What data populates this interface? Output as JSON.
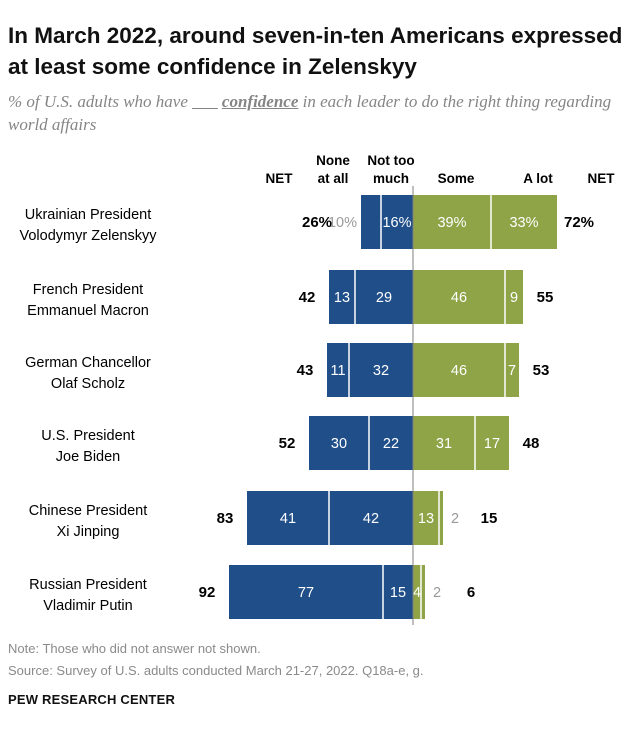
{
  "title": "In March 2022, around seven-in-ten Americans expressed at least some confidence in Zelenskyy",
  "subtitle": {
    "before": "% of U.S. adults who have ",
    "blank": "___",
    "space": " ",
    "keyword": "confidence",
    "after": " in each leader to do the right thing regarding world affairs"
  },
  "note": "Note: Those who did not answer not shown.",
  "source": "Source: Survey of U.S. adults conducted March 21-27, 2022. Q18a-e, g.",
  "footer": "PEW RESEARCH CENTER",
  "colors": {
    "negative": "#1f4e89",
    "positive": "#8ea447",
    "axis_line": "#7f7f7f",
    "none_at_all_light_label": "#9a9a9a"
  },
  "chart_data": {
    "type": "bar",
    "orientation": "horizontal",
    "stacking": "diverging",
    "column_headers": {
      "net_negative": "NET",
      "none_at_all": [
        "None",
        "at all"
      ],
      "not_too_much": [
        "Not too",
        "much"
      ],
      "some": "Some",
      "a_lot": "A lot",
      "net_positive": "NET"
    },
    "categories": [
      [
        "Ukrainian President",
        "Volodymyr Zelenskyy"
      ],
      [
        "French President",
        "Emmanuel Macron"
      ],
      [
        "German Chancellor",
        "Olaf Scholz"
      ],
      [
        "U.S. President",
        "Joe Biden"
      ],
      [
        "Chinese President",
        "Xi Jinping"
      ],
      [
        "Russian President",
        "Vladimir Putin"
      ]
    ],
    "series": [
      {
        "name": "None at all",
        "side": "negative",
        "values": [
          10,
          13,
          11,
          30,
          41,
          77
        ]
      },
      {
        "name": "Not too much",
        "side": "negative",
        "values": [
          16,
          29,
          32,
          22,
          42,
          15
        ]
      },
      {
        "name": "Some",
        "side": "positive",
        "values": [
          39,
          46,
          46,
          31,
          13,
          4
        ]
      },
      {
        "name": "A lot",
        "side": "positive",
        "values": [
          33,
          9,
          7,
          17,
          2,
          2
        ]
      }
    ],
    "net_negative": [
      26,
      42,
      43,
      52,
      83,
      92
    ],
    "net_positive": [
      72,
      55,
      53,
      48,
      15,
      6
    ],
    "first_row_percent_suffix": true
  }
}
